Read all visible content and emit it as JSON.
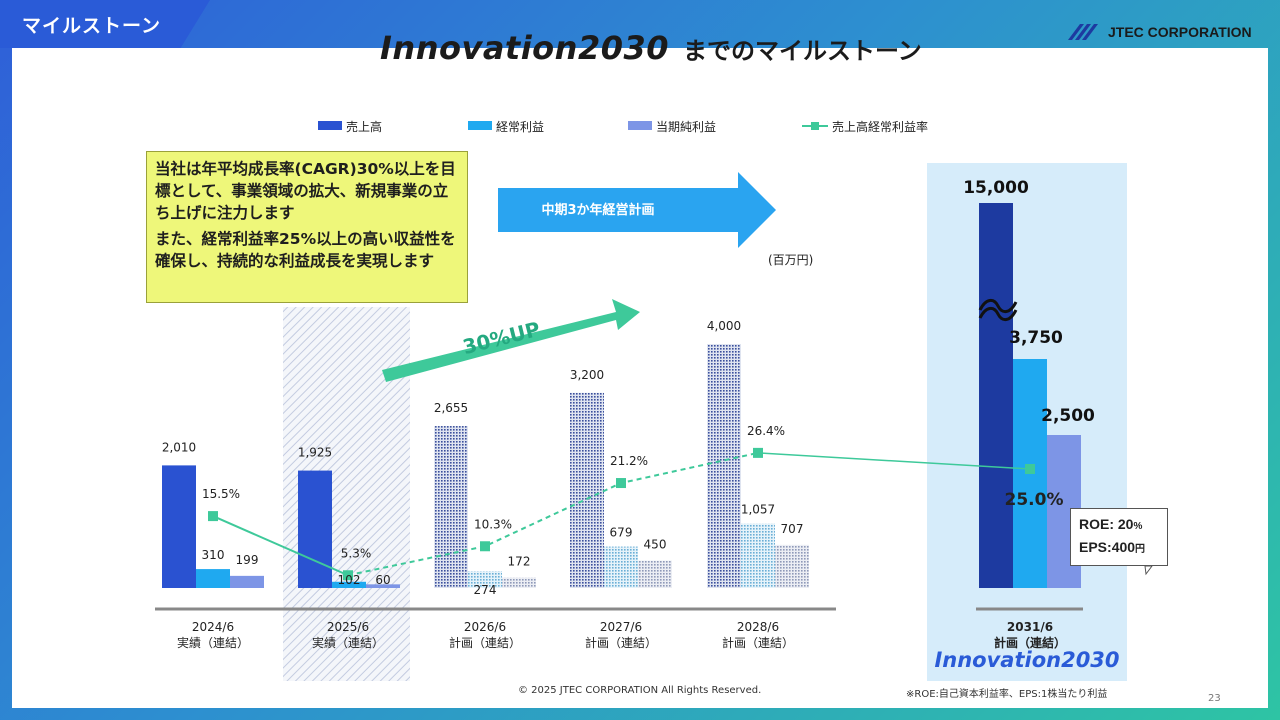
{
  "header": {
    "tag": "マイルストーン",
    "title_main": "Innovation2030",
    "title_sub": "までのマイルストーン",
    "company": "JTEC CORPORATION"
  },
  "callout": {
    "line1": "当社は年平均成長率(CAGR)30%以上を目標として、事業領域の拡大、新規事業の立ち上げに注力します",
    "line2": "また、経常利益率25%以上の高い収益性を確保し、持続的な利益成長を実現します"
  },
  "plan_arrow_label": "中期3か年経営計画",
  "growth_label": "30%UP",
  "unit_label": "(百万円)",
  "roe": {
    "roe_label": "ROE:",
    "roe_value": "20",
    "roe_unit": "%",
    "eps_label": "EPS:",
    "eps_value": "400",
    "eps_unit": "円"
  },
  "inno_logo": "Innovation2030",
  "footer": {
    "copyright": "© 2025 JTEC CORPORATION All Rights Reserved.",
    "note": "※ROE:自己資本利益率、EPS:1株当たり利益",
    "page": "23"
  },
  "colors": {
    "sales": "#2a52d1",
    "ordinary": "#1fa9f0",
    "net": "#7d95e6",
    "ratio": "#3ec99a",
    "sales_2031": "#1d3aa0",
    "highlight_2031": "#d6ecfa",
    "callout_bg": "#eef77a"
  },
  "chart_data": {
    "type": "bar",
    "categories": [
      "2024/6",
      "2025/6",
      "2026/6",
      "2027/6",
      "2028/6",
      "2031/6"
    ],
    "category_notes": [
      "実績（連結）",
      "実績（連結）",
      "計画（連結）",
      "計画（連結）",
      "計画（連結）",
      "計画（連結）"
    ],
    "series": [
      {
        "name": "売上高",
        "values": [
          2010,
          1925,
          2655,
          3200,
          4000,
          15000
        ],
        "labels": [
          "2,010",
          "1,925",
          "2,655",
          "3,200",
          "4,000",
          "15,000"
        ]
      },
      {
        "name": "経常利益",
        "values": [
          310,
          102,
          274,
          679,
          1057,
          3750
        ],
        "labels": [
          "310",
          "102",
          "274",
          "679",
          "1,057",
          "3,750"
        ]
      },
      {
        "name": "当期純利益",
        "values": [
          199,
          60,
          172,
          450,
          707,
          2500
        ],
        "labels": [
          "199",
          "60",
          "172",
          "450",
          "707",
          "2,500"
        ]
      },
      {
        "name": "売上高経常利益率",
        "values": [
          15.5,
          5.3,
          10.3,
          21.2,
          26.4,
          25.0
        ],
        "labels": [
          "15.5%",
          "5.3%",
          "10.3%",
          "21.2%",
          "26.4%",
          "25.0%"
        ]
      }
    ],
    "ylabel": "(百万円)",
    "legend_position": "top",
    "axis_break": "2031/6",
    "hatched_categories": [
      "2026/6",
      "2027/6",
      "2028/6"
    ],
    "grid": false
  }
}
